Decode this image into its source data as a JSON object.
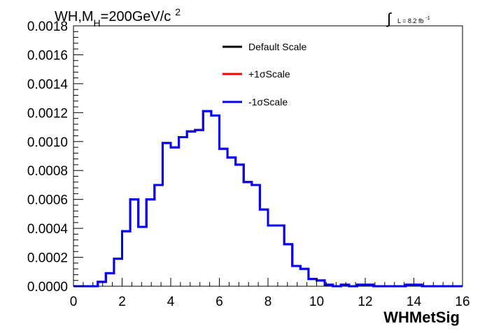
{
  "chart_data": {
    "type": "line",
    "title_parts": {
      "prefix": "WH,M",
      "subscript": "H",
      "middle": "=200GeV/c",
      "superscript": "2"
    },
    "luminosity": {
      "integral_symbol": "∫",
      "text": "L = 8.2 fb",
      "superscript": "-1"
    },
    "xlabel": "WHMetSig",
    "ylabel": "",
    "xlim": [
      0,
      16
    ],
    "ylim": [
      0,
      0.0018
    ],
    "xticks": [
      "0",
      "2",
      "4",
      "6",
      "8",
      "10",
      "12",
      "14",
      "16"
    ],
    "yticks": [
      "0.0000",
      "0.0002",
      "0.0004",
      "0.0006",
      "0.0008",
      "0.0010",
      "0.0012",
      "0.0014",
      "0.0016",
      "0.0018"
    ],
    "grid": false,
    "legend_position": "top-center",
    "bin_edges": [
      0,
      0.333,
      0.667,
      1,
      1.333,
      1.667,
      2,
      2.333,
      2.667,
      3,
      3.333,
      3.667,
      4,
      4.333,
      4.667,
      5,
      5.333,
      5.667,
      6,
      6.333,
      6.667,
      7,
      7.333,
      7.667,
      8,
      8.333,
      8.667,
      9,
      9.333,
      9.667,
      10,
      10.333,
      10.667,
      11,
      11.333,
      11.667,
      12,
      12.333,
      12.667,
      13,
      13.333,
      13.667,
      14,
      14.333,
      14.667,
      15,
      15.333,
      15.667,
      16
    ],
    "series": [
      {
        "name": "Default Scale",
        "color": "#000000",
        "values": [
          0,
          0,
          0,
          3e-05,
          9e-05,
          0.00019,
          0.00038,
          0.0006,
          0.00041,
          0.0006,
          0.0007,
          0.00099,
          0.00096,
          0.00103,
          0.00107,
          0.00108,
          0.00121,
          0.00118,
          0.00095,
          0.00089,
          0.00084,
          0.00072,
          0.0007,
          0.00053,
          0.00042,
          0.00042,
          0.00029,
          0.00014,
          0.00012,
          5e-05,
          4e-05,
          1e-05,
          0,
          1e-05,
          0,
          1e-05,
          1e-05,
          0,
          0,
          0,
          0,
          1e-05,
          1e-05,
          0,
          0,
          0,
          0,
          0
        ]
      },
      {
        "name": "+1σScale",
        "color": "#ff0000",
        "values": [
          0,
          0,
          0,
          3e-05,
          9e-05,
          0.00019,
          0.00038,
          0.0006,
          0.00041,
          0.0006,
          0.0007,
          0.00099,
          0.00096,
          0.00103,
          0.00107,
          0.00108,
          0.00121,
          0.00118,
          0.00095,
          0.00089,
          0.00084,
          0.00072,
          0.0007,
          0.00053,
          0.00042,
          0.00042,
          0.00029,
          0.00014,
          0.00012,
          5e-05,
          4e-05,
          1e-05,
          0,
          1e-05,
          0,
          1e-05,
          1e-05,
          0,
          0,
          0,
          0,
          1e-05,
          1e-05,
          0,
          0,
          0,
          0,
          0
        ]
      },
      {
        "name": "-1σScale",
        "color": "#0000ff",
        "values": [
          0,
          0,
          0,
          3e-05,
          9e-05,
          0.00019,
          0.00038,
          0.0006,
          0.00041,
          0.0006,
          0.0007,
          0.00099,
          0.00096,
          0.00103,
          0.00107,
          0.00108,
          0.00121,
          0.00118,
          0.00095,
          0.00089,
          0.00084,
          0.00072,
          0.0007,
          0.00053,
          0.00042,
          0.00042,
          0.00029,
          0.00014,
          0.00012,
          5e-05,
          4e-05,
          1e-05,
          0,
          1e-05,
          0,
          1e-05,
          1e-05,
          0,
          0,
          0,
          0,
          1e-05,
          1e-05,
          0,
          0,
          0,
          0,
          0
        ]
      }
    ]
  }
}
